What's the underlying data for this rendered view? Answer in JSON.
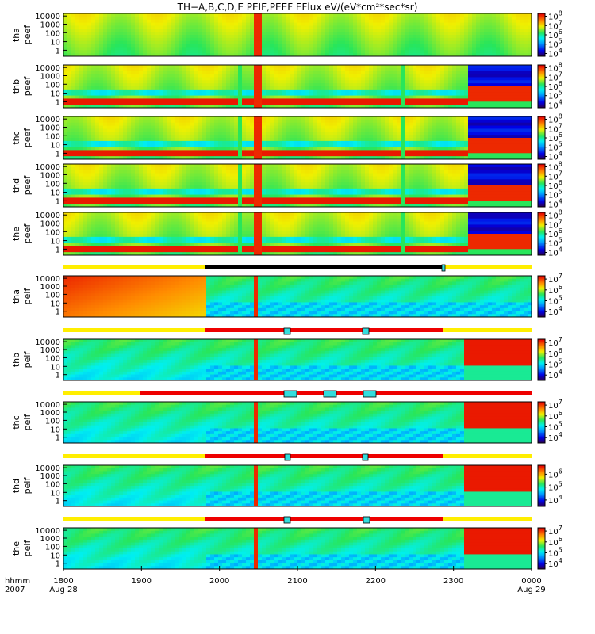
{
  "chart_data": {
    "type": "heatmap",
    "title": "TH−A,B,C,D,E  PEIF,PEEF  EFlux  eV/(eV*cm²*sec*sr)",
    "x_axis": {
      "ticks": [
        "1800",
        "1900",
        "2000",
        "2100",
        "2200",
        "2300",
        "0000"
      ],
      "date_start": "Aug 28",
      "date_end": "Aug 29",
      "row_label_1": "hhmm",
      "row_label_2": "2007",
      "range_hhmm": [
        "1800",
        "0000"
      ]
    },
    "y_axis": {
      "scale": "log",
      "ticks": [
        "10000",
        "1000",
        "100",
        "10",
        "1"
      ]
    },
    "panels": [
      {
        "probe": "tha",
        "species": "peef",
        "cbar_ticks": [
          "8",
          "7",
          "6",
          "5",
          "4"
        ],
        "cbar_range_log": [
          3.7,
          8.3
        ]
      },
      {
        "probe": "thb",
        "species": "peef",
        "cbar_ticks": [
          "8",
          "7",
          "6",
          "5",
          "4"
        ],
        "cbar_range_log": [
          3.7,
          8.3
        ]
      },
      {
        "probe": "thc",
        "species": "peef",
        "cbar_ticks": [
          "8",
          "7",
          "6",
          "5",
          "4"
        ],
        "cbar_range_log": [
          3.7,
          8.3
        ]
      },
      {
        "probe": "thd",
        "species": "peef",
        "cbar_ticks": [
          "8",
          "7",
          "6",
          "5",
          "4"
        ],
        "cbar_range_log": [
          3.7,
          8.3
        ]
      },
      {
        "probe": "the",
        "species": "peef",
        "cbar_ticks": [
          "8",
          "7",
          "6",
          "5",
          "4"
        ],
        "cbar_range_log": [
          3.7,
          8.3
        ]
      },
      {
        "probe": "tha",
        "species": "peif",
        "cbar_ticks": [
          "7",
          "6",
          "5",
          "4"
        ],
        "cbar_range_log": [
          3.5,
          7.3
        ]
      },
      {
        "probe": "thb",
        "species": "peif",
        "cbar_ticks": [
          "7",
          "6",
          "5",
          "4"
        ],
        "cbar_range_log": [
          3.5,
          7.3
        ]
      },
      {
        "probe": "thc",
        "species": "peif",
        "cbar_ticks": [
          "7",
          "6",
          "5",
          "4"
        ],
        "cbar_range_log": [
          3.5,
          7.3
        ]
      },
      {
        "probe": "thd",
        "species": "peif",
        "cbar_ticks": [
          "6",
          "5",
          "4"
        ],
        "cbar_range_log": [
          3.5,
          6.7
        ]
      },
      {
        "probe": "the",
        "species": "peif",
        "cbar_ticks": [
          "7",
          "6",
          "5",
          "4"
        ],
        "cbar_range_log": [
          3.5,
          7.3
        ]
      }
    ],
    "colors": {
      "status_yellow": "#ffee00",
      "status_red": "#ee0000",
      "status_black": "#000000",
      "status_cyan": "#33dddd"
    }
  }
}
